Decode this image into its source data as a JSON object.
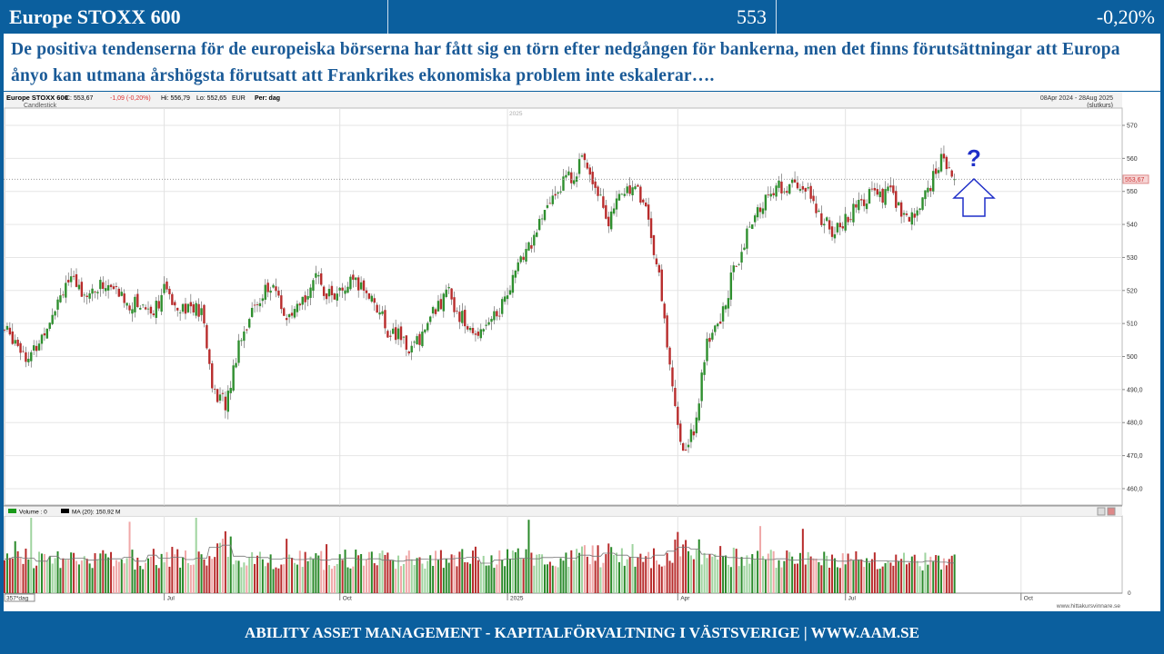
{
  "header": {
    "title": "Europe STOXX 600",
    "value": "553",
    "change": "-0,20%"
  },
  "description": "De positiva tendenserna för de europeiska börserna har fått sig en törn efter nedgången för bankerna, men det finns förutsättningar att Europa ånyo kan utmana årshögsta förutsatt att Frankrikes ekonomiska problem inte eskalerar….",
  "footer": "ABILITY ASSET MANAGEMENT -  KAPITALFÖRVALTNING I VÄSTSVERIGE   |   WWW.AAM.SE",
  "chart_data": {
    "type": "candlestick",
    "title": "Europe STOXX 600",
    "info": {
      "close": "C: 553,67",
      "change": "-1,09 (-0,20%)",
      "high": "Hi: 556,79",
      "low": "Lo: 552,65",
      "currency": "EUR",
      "period": "Per: dag"
    },
    "style_label": "Candlestick",
    "date_range": "08Apr 2024 - 28Aug 2025",
    "range_note": "(slutkurs)",
    "last_price_label": "553,67",
    "annotation": "?",
    "y_ticks": [
      570,
      560,
      550,
      540,
      530,
      520,
      510,
      500,
      490,
      480,
      470,
      460
    ],
    "y_tick_labels": [
      "570",
      "560",
      "550",
      "540",
      "530",
      "520",
      "510",
      "500",
      "490,0",
      "480,0",
      "470,0",
      "460,0"
    ],
    "ylim": [
      457,
      575
    ],
    "x_labels": [
      {
        "label": "Jul",
        "day": 60
      },
      {
        "label": "Oct",
        "day": 126
      },
      {
        "label": "2025",
        "day": 189
      },
      {
        "label": "Apr",
        "day": 253
      },
      {
        "label": "Jul",
        "day": 316
      },
      {
        "label": "Oct",
        "day": 382
      }
    ],
    "top_year_label": "2025",
    "total_days": 420,
    "weekly_closes": [
      508,
      505,
      499,
      506,
      515,
      523,
      521,
      519,
      522,
      520,
      516,
      516,
      514,
      520,
      516,
      515,
      513,
      488,
      486,
      505,
      513,
      520,
      520,
      510,
      515,
      524,
      520,
      518,
      522,
      521,
      517,
      508,
      506,
      502,
      508,
      515,
      519,
      512,
      506,
      511,
      513,
      522,
      530,
      537,
      545,
      552,
      555,
      560,
      552,
      540,
      550,
      552,
      545,
      525,
      495,
      470,
      480,
      505,
      510,
      525,
      535,
      543,
      550,
      551,
      552,
      550,
      543,
      538,
      540,
      545,
      549,
      548,
      550,
      540,
      544,
      552,
      560,
      553.67
    ],
    "last_day": 357,
    "volume": {
      "legend_volume": "Volume : 0",
      "legend_ma": "MA (20): 150,92 M",
      "days_label": "357*dag",
      "zero_label": "0",
      "weekly_volume_m": [
        170,
        180,
        175,
        160,
        185,
        170,
        175,
        165,
        168,
        172,
        180,
        160,
        190,
        175,
        180,
        168,
        175,
        230,
        240,
        185,
        180,
        178,
        170,
        175,
        168,
        172,
        165,
        170,
        175,
        168,
        172,
        165,
        160,
        165,
        170,
        168,
        172,
        175,
        180,
        150,
        165,
        170,
        175,
        172,
        178,
        180,
        175,
        190,
        185,
        200,
        190,
        180,
        175,
        190,
        210,
        230,
        220,
        195,
        185,
        178,
        175,
        170,
        168,
        172,
        165,
        170,
        168,
        165,
        160,
        165,
        158,
        162,
        160,
        158,
        155,
        160,
        155,
        150.92
      ]
    },
    "source": "www.hittakursvinnare.se",
    "colors": {
      "up": "#2f8f2f",
      "down": "#b82c2c",
      "annotation": "#1f2fc8"
    }
  }
}
